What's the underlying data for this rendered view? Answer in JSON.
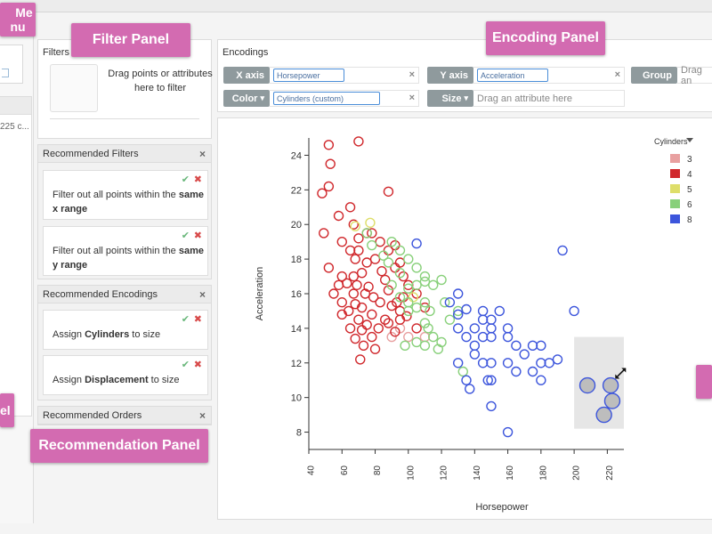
{
  "overlays": {
    "me_label": "Me",
    "menu_fragment": "nu",
    "filter_panel": "Filter Panel",
    "encoding_panel": "Encoding Panel",
    "recommendation_panel": "Recommendation Panel",
    "left_fragment": "el"
  },
  "sidebar": {
    "item_text": "225 c..."
  },
  "filters": {
    "title": "Filters",
    "drop_text": "Drag points or attributes here to filter"
  },
  "recommended_filters": {
    "title": "Recommended Filters",
    "cards": [
      {
        "text_pre": "Filter out all points within the ",
        "bold": "same",
        "text_post": "x range"
      },
      {
        "text_pre": "Filter out all points within the ",
        "bold": "same",
        "text_post": "y range"
      }
    ]
  },
  "recommended_encodings": {
    "title": "Recommended Encodings",
    "cards": [
      {
        "text_pre": "Assign ",
        "bold": "Cylinders",
        "text_post": " to size"
      },
      {
        "text_pre": "Assign ",
        "bold": "Displacement",
        "text_post": " to size"
      }
    ]
  },
  "recommended_orders": {
    "title": "Recommended Orders"
  },
  "icons": {
    "close": "×",
    "accept": "✔",
    "reject": "✖",
    "caret": "▾"
  },
  "encodings": {
    "title": "Encodings",
    "x_axis": {
      "label": "X axis",
      "value": "Horsepower"
    },
    "y_axis": {
      "label": "Y axis",
      "value": "Acceleration"
    },
    "group": {
      "label": "Group",
      "placeholder": "Drag an"
    },
    "color": {
      "label": "Color",
      "value": "Cylinders (custom)"
    },
    "size": {
      "label": "Size",
      "placeholder": "Drag an attribute here"
    }
  },
  "chart_data": {
    "type": "scatter",
    "title": "",
    "xlabel": "Horsepower",
    "ylabel": "Acceleration",
    "xlim": [
      40,
      230
    ],
    "ylim": [
      7,
      25
    ],
    "xticks": [
      40,
      60,
      80,
      100,
      120,
      140,
      160,
      180,
      200,
      220
    ],
    "yticks": [
      8,
      10,
      12,
      14,
      16,
      18,
      20,
      22,
      24
    ],
    "legend": {
      "title": "Cylinders",
      "position": "top-right",
      "entries": [
        {
          "label": "3",
          "color": "#e8a0a0"
        },
        {
          "label": "4",
          "color": "#d0282c"
        },
        {
          "label": "5",
          "color": "#dede6a"
        },
        {
          "label": "6",
          "color": "#88d07a"
        },
        {
          "label": "8",
          "color": "#3c55dc"
        }
      ]
    },
    "selection": {
      "x_range": [
        200,
        230
      ],
      "y_range": [
        8.2,
        13.5
      ]
    },
    "series": [
      {
        "name": "3",
        "color": "#e8a0a0",
        "points": [
          [
            90,
            13.5
          ],
          [
            100,
            13.5
          ],
          [
            110,
            13.5
          ],
          [
            95,
            14
          ]
        ]
      },
      {
        "name": "4",
        "color": "#d0282c",
        "points": [
          [
            52,
            24.6
          ],
          [
            70,
            24.8
          ],
          [
            53,
            23.5
          ],
          [
            52,
            22.2
          ],
          [
            48,
            21.8
          ],
          [
            88,
            21.9
          ],
          [
            65,
            21
          ],
          [
            58,
            20.5
          ],
          [
            67,
            20
          ],
          [
            75,
            19.5
          ],
          [
            49,
            19.5
          ],
          [
            70,
            19.2
          ],
          [
            78,
            19.5
          ],
          [
            83,
            19
          ],
          [
            60,
            19
          ],
          [
            65,
            18.5
          ],
          [
            70,
            18.5
          ],
          [
            88,
            18.5
          ],
          [
            92,
            18.8
          ],
          [
            68,
            18
          ],
          [
            80,
            18
          ],
          [
            75,
            17.8
          ],
          [
            95,
            17.8
          ],
          [
            52,
            17.5
          ],
          [
            60,
            17
          ],
          [
            67,
            17
          ],
          [
            72,
            17.2
          ],
          [
            84,
            17.3
          ],
          [
            92,
            17.5
          ],
          [
            97,
            17
          ],
          [
            58,
            16.5
          ],
          [
            63,
            16.6
          ],
          [
            69,
            16.5
          ],
          [
            76,
            16.4
          ],
          [
            86,
            16.8
          ],
          [
            100,
            16.5
          ],
          [
            55,
            16
          ],
          [
            67,
            16
          ],
          [
            74,
            16
          ],
          [
            79,
            15.8
          ],
          [
            88,
            16.2
          ],
          [
            93,
            15.5
          ],
          [
            97,
            15.8
          ],
          [
            105,
            16
          ],
          [
            60,
            15.5
          ],
          [
            68,
            15.4
          ],
          [
            72,
            15.2
          ],
          [
            83,
            15.5
          ],
          [
            90,
            15.3
          ],
          [
            95,
            15
          ],
          [
            110,
            15.2
          ],
          [
            64,
            15
          ],
          [
            78,
            14.8
          ],
          [
            86,
            14.5
          ],
          [
            99,
            14.7
          ],
          [
            70,
            14.5
          ],
          [
            75,
            14.2
          ],
          [
            82,
            14
          ],
          [
            88,
            14.3
          ],
          [
            95,
            14.5
          ],
          [
            60,
            14.8
          ],
          [
            65,
            14
          ],
          [
            72,
            13.9
          ],
          [
            78,
            13.5
          ],
          [
            92,
            13.8
          ],
          [
            68,
            13.4
          ],
          [
            73,
            13
          ],
          [
            80,
            12.8
          ],
          [
            71,
            12.2
          ],
          [
            105,
            14
          ]
        ]
      },
      {
        "name": "5",
        "color": "#dede6a",
        "points": [
          [
            68,
            19.9
          ],
          [
            77,
            20.1
          ],
          [
            103,
            15.8
          ]
        ]
      },
      {
        "name": "6",
        "color": "#88d07a",
        "points": [
          [
            75,
            19.5
          ],
          [
            78,
            18.8
          ],
          [
            85,
            18.2
          ],
          [
            90,
            19
          ],
          [
            95,
            18.5
          ],
          [
            88,
            17.8
          ],
          [
            100,
            18
          ],
          [
            95,
            17.2
          ],
          [
            105,
            17.5
          ],
          [
            110,
            17
          ],
          [
            90,
            16.5
          ],
          [
            100,
            16.3
          ],
          [
            105,
            16.5
          ],
          [
            110,
            16.7
          ],
          [
            115,
            16.5
          ],
          [
            120,
            16.8
          ],
          [
            95,
            15.8
          ],
          [
            100,
            15.5
          ],
          [
            105,
            15.2
          ],
          [
            110,
            15.5
          ],
          [
            100,
            15
          ],
          [
            110,
            14.3
          ],
          [
            112,
            14
          ],
          [
            122,
            15.5
          ],
          [
            125,
            14.5
          ],
          [
            130,
            15
          ],
          [
            115,
            13.5
          ],
          [
            120,
            13.2
          ],
          [
            98,
            13
          ],
          [
            105,
            13.2
          ],
          [
            110,
            13
          ],
          [
            118,
            12.8
          ],
          [
            133,
            11.5
          ],
          [
            113,
            15
          ]
        ]
      },
      {
        "name": "8",
        "color": "#3c55dc",
        "points": [
          [
            105,
            18.9
          ],
          [
            130,
            16
          ],
          [
            125,
            15.5
          ],
          [
            135,
            15.1
          ],
          [
            130,
            14.8
          ],
          [
            140,
            14
          ],
          [
            145,
            14.5
          ],
          [
            150,
            14.5
          ],
          [
            155,
            15
          ],
          [
            160,
            14
          ],
          [
            150,
            14
          ],
          [
            145,
            13.5
          ],
          [
            140,
            13
          ],
          [
            135,
            13.5
          ],
          [
            150,
            13.5
          ],
          [
            160,
            13.5
          ],
          [
            165,
            13
          ],
          [
            170,
            12.5
          ],
          [
            175,
            13
          ],
          [
            180,
            13
          ],
          [
            180,
            12
          ],
          [
            185,
            12
          ],
          [
            175,
            11.5
          ],
          [
            180,
            11
          ],
          [
            150,
            12
          ],
          [
            145,
            12
          ],
          [
            150,
            11
          ],
          [
            160,
            12
          ],
          [
            140,
            12.5
          ],
          [
            130,
            12
          ],
          [
            135,
            11
          ],
          [
            137,
            10.5
          ],
          [
            150,
            9.5
          ],
          [
            160,
            8
          ],
          [
            190,
            12.2
          ],
          [
            193,
            18.5
          ],
          [
            200,
            15
          ],
          [
            130,
            14
          ],
          [
            145,
            15
          ],
          [
            165,
            11.5
          ],
          [
            148,
            11
          ]
        ]
      }
    ],
    "selected_points": [
      [
        208,
        10.7
      ],
      [
        222,
        10.7
      ],
      [
        223,
        9.8
      ],
      [
        218,
        9
      ]
    ]
  }
}
